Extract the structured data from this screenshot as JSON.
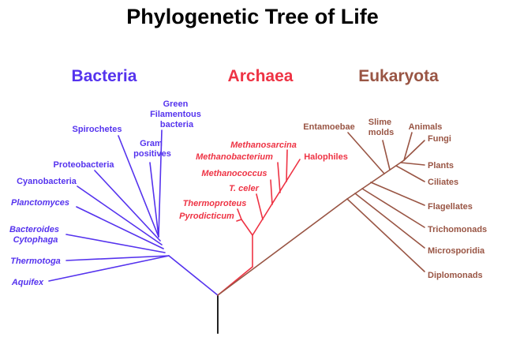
{
  "title": "Phylogenetic Tree of Life",
  "colors": {
    "bacteria": "#5533ee",
    "archaea": "#ee3344",
    "eukaryota": "#995544",
    "root": "#222222"
  },
  "domains": {
    "bacteria": "Bacteria",
    "archaea": "Archaea",
    "eukaryota": "Eukaryota"
  },
  "bacteria": {
    "green_filamentous": [
      "Green",
      "Filamentous",
      "bacteria"
    ],
    "spirochetes": "Spirochetes",
    "gram_positives": [
      "Gram",
      "positives"
    ],
    "proteobacteria": "Proteobacteria",
    "cyanobacteria": "Cyanobacteria",
    "planctomyces": "Planctomyces",
    "bacteroides_cytophaga": [
      "Bacteroides",
      "Cytophaga"
    ],
    "thermotoga": "Thermotoga",
    "aquifex": "Aquifex"
  },
  "archaea": {
    "methanosarcina": "Methanosarcina",
    "methanobacterium": "Methanobacterium",
    "halophiles": "Halophiles",
    "methanococcus": "Methanococcus",
    "t_celer": "T. celer",
    "thermoproteus": "Thermoproteus",
    "pyrodicticum": "Pyrodicticum"
  },
  "eukaryota": {
    "entamoebae": "Entamoebae",
    "slime_molds": [
      "Slime",
      "molds"
    ],
    "animals": "Animals",
    "fungi": "Fungi",
    "plants": "Plants",
    "ciliates": "Ciliates",
    "flagellates": "Flagellates",
    "trichomonads": "Trichomonads",
    "microsporidia": "Microsporidia",
    "diplomonads": "Diplomonads"
  }
}
